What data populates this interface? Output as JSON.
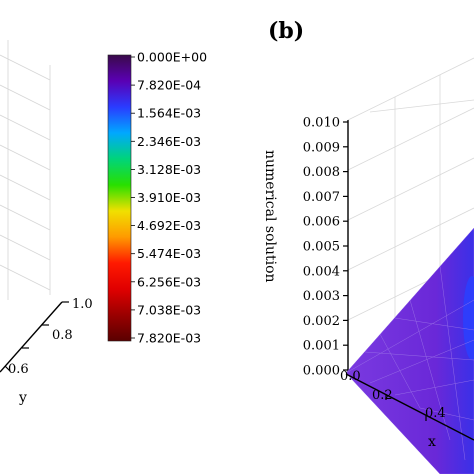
{
  "panel_label": "(b)",
  "chart_data": [
    {
      "type": "surface",
      "panel": "left (partial)",
      "ylabel": "y",
      "y_ticks": [
        "0.6",
        "0.8",
        "1.0"
      ],
      "grid": true
    },
    {
      "type": "colorbar",
      "ticks": [
        "0.000E+00",
        "7.820E-04",
        "1.564E-03",
        "2.346E-03",
        "3.128E-03",
        "3.910E-03",
        "4.692E-03",
        "5.474E-03",
        "6.256E-03",
        "7.038E-03",
        "7.820E-03"
      ],
      "colors": [
        "#3a0a4a",
        "#5a00b4",
        "#2a3cff",
        "#00a8ff",
        "#00d47a",
        "#28e000",
        "#f0e000",
        "#ff9a00",
        "#ff1a00",
        "#e00000",
        "#9a0000",
        "#5a0000"
      ]
    },
    {
      "type": "surface",
      "panel": "(b)",
      "zlabel": "numerical solution",
      "xlabel": "x",
      "z_ticks": [
        "0.000",
        "0.001",
        "0.002",
        "0.003",
        "0.004",
        "0.005",
        "0.006",
        "0.007",
        "0.008",
        "0.009",
        "0.010"
      ],
      "zlim": [
        0,
        0.01
      ],
      "x_ticks": [
        "0.0",
        "0.2",
        "0.4"
      ],
      "surface_color": "#6a2ad0",
      "grid": true
    }
  ]
}
